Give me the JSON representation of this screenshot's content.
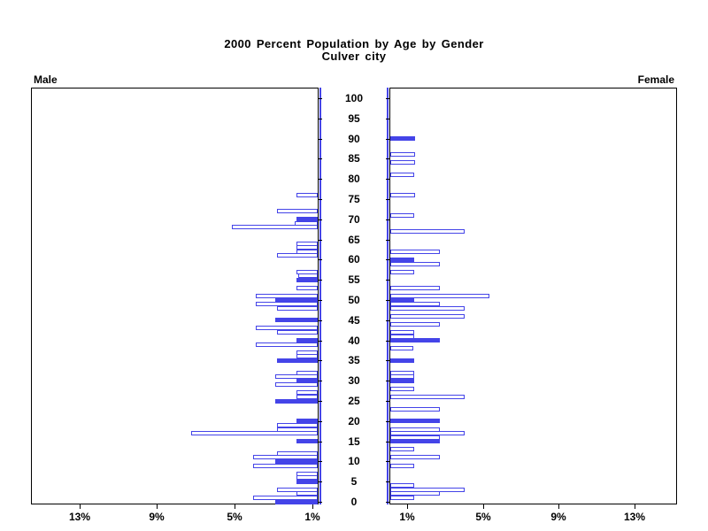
{
  "title": {
    "line1": "2000 Percent Population by Age by Gender",
    "line2": "Culver city"
  },
  "panel_labels": {
    "left": "Male",
    "right": "Female"
  },
  "colors": {
    "bar_blue": "#4444E8",
    "frame_black": "#000000",
    "background": "#FFFFFF"
  },
  "x_axis": {
    "left_tick_labels": [
      "13%",
      "9%",
      "5%",
      "1%"
    ],
    "right_tick_labels": [
      "1%",
      "5%",
      "9%",
      "13%"
    ]
  },
  "age_axis": {
    "min": 0,
    "max": 100,
    "tick_interval": 5
  },
  "chart_data": {
    "type": "bar",
    "variant": "population-pyramid",
    "title": "2000 Percent Population by Age by Gender",
    "subtitle": "Culver city",
    "left_series": "Male",
    "right_series": "Female",
    "unit": "percent",
    "xlim_pct": [
      0,
      15
    ],
    "x_ticks_pct": [
      1,
      5,
      9,
      13
    ],
    "age_min": 0,
    "age_max": 100,
    "age_tick_interval": 5,
    "fill_rule": "bars at ages divisible by 5 are solid blue; all other bars are white with blue outline",
    "male_pct_by_age": [
      2.2,
      3.3,
      1.1,
      2.1,
      0,
      1.1,
      1.1,
      1.1,
      0,
      3.3,
      2.2,
      3.3,
      2.1,
      0,
      0,
      1.1,
      0,
      6.5,
      2.1,
      2.1,
      1.1,
      0,
      0,
      0,
      0,
      2.2,
      1.1,
      1.1,
      0,
      2.2,
      1.1,
      2.2,
      1.1,
      0,
      0,
      2.1,
      1.1,
      1.1,
      0,
      3.2,
      1.1,
      0,
      2.1,
      3.2,
      0,
      2.2,
      0,
      0,
      2.1,
      3.2,
      2.2,
      3.2,
      0,
      1.1,
      0,
      1.1,
      1.0,
      1.1,
      0,
      0,
      0,
      2.1,
      1.1,
      1.1,
      1.1,
      0,
      0,
      0,
      4.4,
      1.2,
      1.1,
      0,
      2.1,
      0,
      0,
      0,
      1.1,
      0,
      0,
      0,
      0,
      0,
      0,
      0,
      0,
      0,
      0,
      0,
      0,
      0,
      0,
      0,
      0,
      0,
      0,
      0,
      0,
      0,
      0,
      0,
      0
    ],
    "female_pct_by_age": [
      0,
      1.25,
      2.6,
      3.9,
      1.25,
      0,
      0,
      0,
      0,
      1.25,
      0,
      2.6,
      0,
      1.25,
      0,
      2.6,
      2.6,
      3.9,
      2.6,
      0,
      2.6,
      0,
      0,
      2.6,
      0,
      0,
      3.9,
      0,
      1.25,
      0,
      1.25,
      1.25,
      1.25,
      0,
      0,
      1.25,
      0,
      0,
      1.2,
      0,
      2.6,
      1.25,
      1.25,
      0,
      2.6,
      0,
      3.9,
      0,
      3.9,
      2.6,
      1.25,
      5.2,
      0,
      2.6,
      0,
      0,
      0,
      1.25,
      0,
      2.6,
      1.25,
      0,
      2.6,
      0,
      0,
      0,
      0,
      3.9,
      0,
      0,
      0,
      1.25,
      0,
      0,
      0,
      0,
      1.3,
      0,
      0,
      0,
      0,
      1.25,
      0,
      0,
      1.3,
      0,
      1.3,
      0,
      0,
      0,
      1.3,
      0,
      0,
      0,
      0,
      0,
      0,
      0,
      0,
      0,
      0
    ]
  }
}
